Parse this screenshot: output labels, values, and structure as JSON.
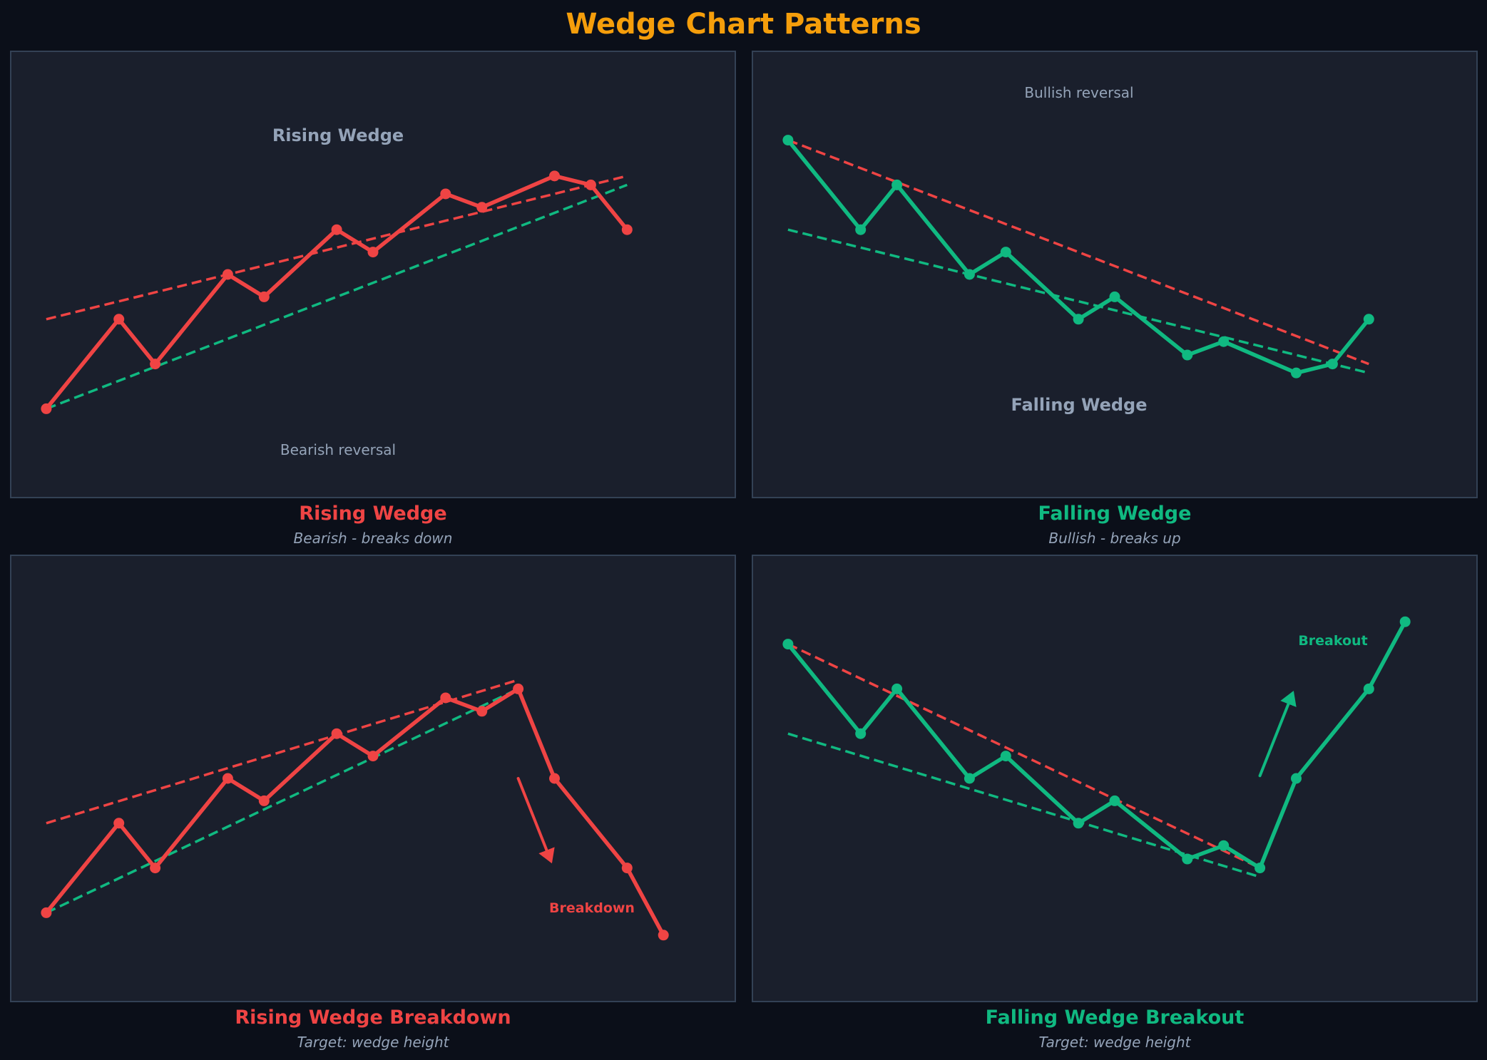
{
  "title": "Wedge Chart Patterns",
  "colors": {
    "background": "#0b0f19",
    "panel": "#1a1f2c",
    "border": "#334155",
    "title": "#f59e0b",
    "bearish": "#ef4444",
    "bullish": "#10b981",
    "muted": "#94a3b8"
  },
  "panels": [
    {
      "caption": "Rising Wedge",
      "subcaption": "Bearish - breaks down",
      "inner_title": "Rising Wedge",
      "inner_note": "Bearish reversal",
      "tag": ""
    },
    {
      "caption": "Falling Wedge",
      "subcaption": "Bullish - breaks up",
      "inner_title": "Falling Wedge",
      "inner_note": "Bullish reversal",
      "tag": ""
    },
    {
      "caption": "Rising Wedge Breakdown",
      "subcaption": "Target: wedge height",
      "inner_title": "",
      "inner_note": "",
      "tag": "Breakdown"
    },
    {
      "caption": "Falling Wedge Breakout",
      "subcaption": "Target: wedge height",
      "inner_title": "",
      "inner_note": "",
      "tag": "Breakout"
    }
  ],
  "chart_data": [
    {
      "type": "line",
      "title": "Rising Wedge",
      "subtitle": "Bearish - breaks down",
      "xlim": [
        -1,
        19
      ],
      "ylim": [
        0,
        50
      ],
      "grid": false,
      "axes_visible": false,
      "series": [
        {
          "name": "price",
          "color": "#ef4444",
          "style": "solid",
          "markers": true,
          "x": [
            0,
            2,
            3,
            5,
            6,
            8,
            9,
            11,
            12,
            14,
            15,
            16
          ],
          "y": [
            10,
            20,
            15,
            25,
            22.5,
            30,
            27.5,
            34,
            32.5,
            36,
            35,
            30
          ]
        },
        {
          "name": "upper trendline",
          "color": "#ef4444",
          "style": "dashed",
          "x": [
            0,
            16
          ],
          "y": [
            20,
            36
          ]
        },
        {
          "name": "lower trendline",
          "color": "#10b981",
          "style": "dashed",
          "x": [
            0,
            16
          ],
          "y": [
            10,
            35
          ]
        }
      ],
      "annotations": [
        {
          "text": "Rising Wedge",
          "x": 8,
          "y": 40.7,
          "kind": "title"
        },
        {
          "text": "Bearish reversal",
          "x": 8,
          "y": 5.6,
          "kind": "note"
        }
      ]
    },
    {
      "type": "line",
      "title": "Falling Wedge",
      "subtitle": "Bullish - breaks up",
      "xlim": [
        -1,
        19
      ],
      "ylim": [
        0,
        50
      ],
      "grid": false,
      "axes_visible": false,
      "series": [
        {
          "name": "price",
          "color": "#10b981",
          "style": "solid",
          "markers": true,
          "x": [
            0,
            2,
            3,
            5,
            6,
            8,
            9,
            11,
            12,
            14,
            15,
            16
          ],
          "y": [
            40,
            30,
            35,
            25,
            27.5,
            20,
            22.5,
            16,
            17.5,
            14,
            15,
            20
          ]
        },
        {
          "name": "upper trendline",
          "color": "#ef4444",
          "style": "dashed",
          "x": [
            0,
            16
          ],
          "y": [
            40,
            15
          ]
        },
        {
          "name": "lower trendline",
          "color": "#10b981",
          "style": "dashed",
          "x": [
            0,
            16
          ],
          "y": [
            30,
            14
          ]
        }
      ],
      "annotations": [
        {
          "text": "Bullish reversal",
          "x": 8,
          "y": 45.5,
          "kind": "note"
        },
        {
          "text": "Falling Wedge",
          "x": 8,
          "y": 10.6,
          "kind": "title"
        }
      ]
    },
    {
      "type": "line",
      "title": "Rising Wedge Breakdown",
      "subtitle": "Target: wedge height",
      "xlim": [
        -1,
        19
      ],
      "ylim": [
        0,
        50
      ],
      "grid": false,
      "axes_visible": false,
      "series": [
        {
          "name": "price",
          "color": "#ef4444",
          "style": "solid",
          "markers": true,
          "x": [
            0,
            2,
            3,
            5,
            6,
            8,
            9,
            11,
            12,
            13,
            14,
            16,
            17
          ],
          "y": [
            10,
            20,
            15,
            25,
            22.5,
            30,
            27.5,
            34,
            32.5,
            35,
            25,
            15,
            7.5
          ]
        },
        {
          "name": "upper trendline",
          "color": "#ef4444",
          "style": "dashed",
          "x": [
            0,
            13
          ],
          "y": [
            20,
            36
          ]
        },
        {
          "name": "lower trendline",
          "color": "#10b981",
          "style": "dashed",
          "x": [
            0,
            13
          ],
          "y": [
            10,
            35
          ]
        }
      ],
      "arrows": [
        {
          "color": "#ef4444",
          "from": [
            13,
            25
          ],
          "to": [
            13.9,
            15.8
          ]
        }
      ],
      "annotations": [
        {
          "text": "Breakdown",
          "x": 14.9,
          "y": 10.6,
          "kind": "tag",
          "color": "#ef4444"
        }
      ]
    },
    {
      "type": "line",
      "title": "Falling Wedge Breakout",
      "subtitle": "Target: wedge height",
      "xlim": [
        -1,
        19
      ],
      "ylim": [
        0,
        50
      ],
      "grid": false,
      "axes_visible": false,
      "series": [
        {
          "name": "price",
          "color": "#10b981",
          "style": "solid",
          "markers": true,
          "x": [
            0,
            2,
            3,
            5,
            6,
            8,
            9,
            11,
            12,
            13,
            14,
            16,
            17
          ],
          "y": [
            40,
            30,
            35,
            25,
            27.5,
            20,
            22.5,
            16,
            17.5,
            15,
            25,
            35,
            42.5
          ]
        },
        {
          "name": "upper trendline",
          "color": "#ef4444",
          "style": "dashed",
          "x": [
            0,
            13
          ],
          "y": [
            40,
            15
          ]
        },
        {
          "name": "lower trendline",
          "color": "#10b981",
          "style": "dashed",
          "x": [
            0,
            13
          ],
          "y": [
            30,
            14
          ]
        }
      ],
      "arrows": [
        {
          "color": "#10b981",
          "from": [
            13,
            25.3
          ],
          "to": [
            13.9,
            34.5
          ]
        }
      ],
      "annotations": [
        {
          "text": "Breakout",
          "x": 14.9,
          "y": 40.5,
          "kind": "tag",
          "color": "#10b981"
        }
      ]
    }
  ]
}
